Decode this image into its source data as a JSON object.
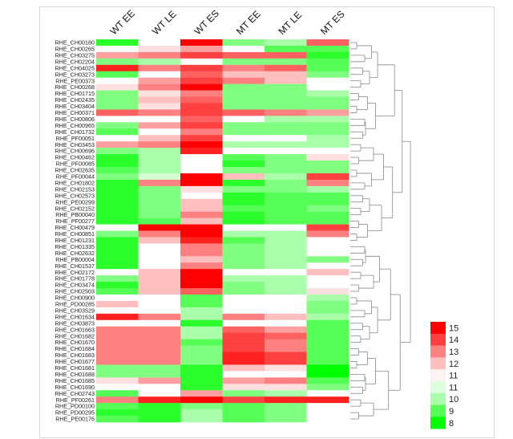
{
  "chart_data": {
    "type": "heatmap",
    "title": "",
    "columns": [
      "WT EE",
      "WT LE",
      "WT ES",
      "MT EE",
      "MT LE",
      "MT ES"
    ],
    "rows": [
      "RHE_CH00180",
      "RHE_CH00265",
      "RHE_CH03275",
      "RHE_CH02204",
      "RHE_CH04025",
      "RHE_CH03273",
      "RHE_PE00373",
      "RHE_CH00268",
      "RHE_CH01715",
      "RHE_CH02435",
      "RHE_CH03404",
      "RHE_CH00371",
      "RHE_CH00806",
      "RHE_CH00965",
      "RHE_CH01732",
      "RHE_PF00051",
      "RHE_CH03453",
      "RHE_CH00696",
      "RHE_CH00462",
      "RHE_PF00085",
      "RHE_CH02635",
      "RHE_PF00044",
      "RHE_CH01802",
      "RHE_CH02153",
      "RHE_CH02573",
      "RHE_PE00299",
      "RHE_CH02152",
      "RHE_PB00040",
      "RHE_PF00277",
      "RHE_CH00479",
      "RHE_CH00851",
      "RHE_CH01231",
      "RHE_CH01335",
      "RHE_CH02632",
      "RHE_PB00004",
      "RHE_CH01537",
      "RHE_CH02172",
      "RHE_CH01778",
      "RHE_CH03474",
      "RHE_CH02503",
      "RHE_CH00900",
      "RHE_PD00285",
      "RHE_CH03529",
      "RHE_CH01634",
      "RHE_CH03873",
      "RHE_CH01663",
      "RHE_CH01682",
      "RHE_CH01670",
      "RHE_CH01684",
      "RHE_CH01683",
      "RHE_CH01677",
      "RHE_CH01681",
      "RHE_CH01688",
      "RHE_CH01685",
      "RHE_CH01690",
      "RHE_CH02743",
      "RHE_PF00261",
      "RHE_PD00100",
      "RHE_PD00295",
      "RHE_PE00176"
    ],
    "values": [
      [
        8.5,
        11,
        15,
        9.5,
        10,
        13.5
      ],
      [
        11,
        11.5,
        12.5,
        11,
        9,
        9
      ],
      [
        12.5,
        13,
        14,
        13.5,
        13.5,
        8.5
      ],
      [
        9.5,
        10,
        11,
        9.5,
        9.5,
        9
      ],
      [
        14.5,
        13,
        14,
        13,
        13.5,
        9
      ],
      [
        9,
        11,
        13.5,
        12,
        12,
        9.5
      ],
      [
        11,
        12.5,
        14,
        13,
        12,
        11
      ],
      [
        11.5,
        13,
        15,
        9.5,
        9.5,
        11
      ],
      [
        9.5,
        11.5,
        13,
        9.5,
        9.5,
        10
      ],
      [
        9.5,
        12,
        13.5,
        9.5,
        9.5,
        9.5
      ],
      [
        9.5,
        11.5,
        14,
        9.5,
        9.5,
        9.5
      ],
      [
        13.5,
        13,
        14,
        13.5,
        13,
        12.5
      ],
      [
        11,
        11,
        13.5,
        11,
        10,
        10
      ],
      [
        9.5,
        12.5,
        14,
        9.5,
        9.5,
        9.5
      ],
      [
        9,
        11,
        13,
        9.5,
        9.5,
        9.5
      ],
      [
        11,
        12,
        14,
        11,
        11,
        10
      ],
      [
        12.5,
        13,
        15,
        10,
        10,
        10
      ],
      [
        9.5,
        10,
        14.5,
        11,
        11,
        11
      ],
      [
        8.5,
        10,
        11,
        9,
        9.5,
        11.5
      ],
      [
        8.5,
        10,
        11,
        8.5,
        9.5,
        9.5
      ],
      [
        9,
        10,
        11,
        9.5,
        9.5,
        9.5
      ],
      [
        9.5,
        10.5,
        15,
        12,
        10,
        14
      ],
      [
        8.5,
        13,
        15,
        8.5,
        9.5,
        13
      ],
      [
        8.5,
        9.5,
        11.5,
        9.5,
        9.5,
        10
      ],
      [
        8.5,
        9.5,
        11,
        8.5,
        9,
        9
      ],
      [
        8.5,
        9.5,
        12,
        8.5,
        9,
        9
      ],
      [
        8.5,
        9.5,
        12,
        9,
        9,
        9.5
      ],
      [
        8.5,
        9.5,
        13,
        8.5,
        9,
        9
      ],
      [
        8.5,
        9,
        12,
        8.5,
        9,
        9
      ],
      [
        11,
        15,
        15,
        11,
        11,
        14
      ],
      [
        9.5,
        13,
        15,
        10,
        10,
        13
      ],
      [
        8.5,
        12,
        14.5,
        9,
        10,
        11
      ],
      [
        8.5,
        11,
        13,
        9.5,
        10,
        11
      ],
      [
        8.5,
        11,
        13,
        9.5,
        10,
        11
      ],
      [
        8.5,
        11,
        12,
        9.5,
        10,
        9.5
      ],
      [
        8.5,
        11,
        13,
        9.5,
        10,
        11
      ],
      [
        11,
        12,
        15,
        11,
        11,
        12
      ],
      [
        9.5,
        12,
        15,
        10,
        10,
        11
      ],
      [
        8.5,
        12,
        15,
        9.5,
        10,
        11
      ],
      [
        9,
        12,
        13.5,
        9.5,
        10,
        11.5
      ],
      [
        11,
        11,
        9,
        11,
        11,
        10
      ],
      [
        12,
        11,
        9,
        11,
        11,
        9.5
      ],
      [
        11,
        11,
        10,
        11,
        11,
        9.5
      ],
      [
        14.5,
        13,
        10,
        13,
        12,
        10
      ],
      [
        11,
        11,
        8.5,
        11,
        11,
        9
      ],
      [
        13,
        13,
        10,
        13.5,
        12.5,
        9
      ],
      [
        13,
        13,
        10,
        14,
        13.5,
        9
      ],
      [
        13,
        13,
        9,
        14,
        13,
        9
      ],
      [
        13,
        13,
        9.5,
        14,
        13,
        9
      ],
      [
        13,
        13,
        9.5,
        14.5,
        14,
        9
      ],
      [
        13,
        13,
        9.5,
        14.5,
        14,
        9
      ],
      [
        9.5,
        9.5,
        8.5,
        12,
        11.5,
        8
      ],
      [
        9.5,
        9.5,
        8.5,
        11,
        11,
        8
      ],
      [
        11.5,
        12.5,
        8.5,
        12.5,
        13,
        9
      ],
      [
        11,
        11,
        8.5,
        11.5,
        11.5,
        9.5
      ],
      [
        9,
        11,
        12.5,
        9.5,
        10,
        11
      ],
      [
        13,
        14.5,
        15,
        14,
        14.5,
        14.5
      ],
      [
        9,
        8.5,
        9.5,
        9,
        9.5,
        11
      ],
      [
        8.5,
        8.5,
        10,
        9,
        9.5,
        11
      ],
      [
        9,
        8.5,
        10,
        9,
        9.5,
        11
      ]
    ],
    "legend": {
      "labels": [
        "15",
        "14",
        "13",
        "12",
        "11",
        "11",
        "10",
        "9",
        "8"
      ],
      "min": 8,
      "mid": 11,
      "max": 15
    },
    "colors": {
      "low": "#00ff00",
      "mid": "#ffffff",
      "high": "#ff0000"
    }
  }
}
